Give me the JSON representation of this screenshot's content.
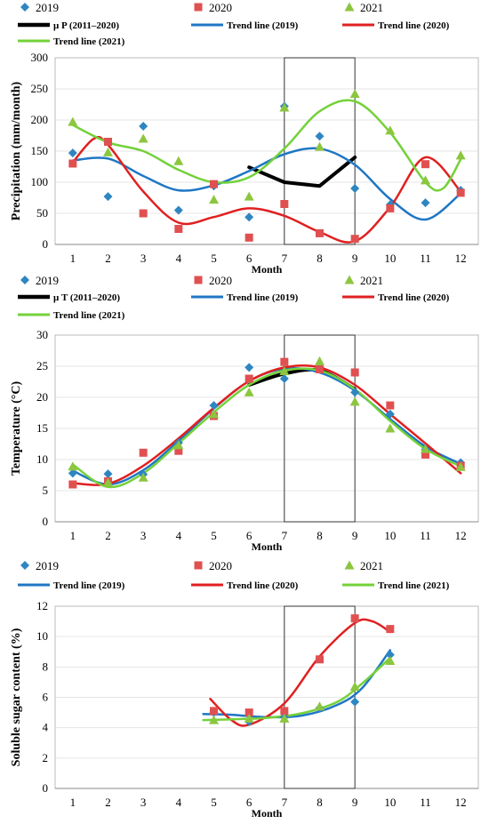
{
  "chart_data": [
    {
      "type": "scatter",
      "ylabel": "Precipitation (mm/month)",
      "xlabel": "Month",
      "xlim": [
        0.5,
        12.5
      ],
      "ylim": [
        0,
        300
      ],
      "yticks": [
        0,
        50,
        100,
        150,
        200,
        250,
        300
      ],
      "xticks": [
        "1",
        "2",
        "3",
        "4",
        "5",
        "6",
        "7",
        "8",
        "9",
        "10",
        "11",
        "12"
      ],
      "highlight_months": [
        7,
        9
      ],
      "legend": [
        {
          "label": "2019",
          "marker": "diamond",
          "color": "#2e86c1"
        },
        {
          "label": "2020",
          "marker": "square",
          "color": "#e05050"
        },
        {
          "label": "2021",
          "marker": "triangle",
          "color": "#8cc63f"
        },
        {
          "label": "μ P (2011–2020)",
          "line": "#000000",
          "width": 4
        },
        {
          "label": "Trend line (2019)",
          "line": "#1f77c4",
          "width": 2.5
        },
        {
          "label": "Trend line (2020)",
          "line": "#e02020",
          "width": 2.5
        },
        {
          "label": "Trend line (2021)",
          "line": "#74d13a",
          "width": 2.5
        }
      ],
      "series": [
        {
          "name": "2019",
          "kind": "points",
          "marker": "diamond",
          "color": "#2e86c1",
          "x": [
            1,
            2,
            3,
            4,
            5,
            6,
            7,
            8,
            9,
            10,
            11,
            12
          ],
          "y": [
            147,
            77,
            190,
            55,
            94,
            44,
            222,
            174,
            90,
            64,
            67,
            87
          ]
        },
        {
          "name": "2020",
          "kind": "points",
          "marker": "square",
          "color": "#e05050",
          "x": [
            1,
            2,
            3,
            4,
            5,
            6,
            7,
            8,
            9,
            10,
            11,
            12
          ],
          "y": [
            130,
            165,
            50,
            25,
            97,
            11,
            65,
            18,
            9,
            58,
            129,
            83
          ]
        },
        {
          "name": "2021",
          "kind": "points",
          "marker": "triangle",
          "color": "#8cc63f",
          "x": [
            1,
            2,
            3,
            4,
            5,
            6,
            7,
            8,
            9,
            10,
            11,
            12
          ],
          "y": [
            197,
            148,
            170,
            134,
            72,
            77,
            220,
            157,
            242,
            183,
            103,
            143
          ]
        },
        {
          "name": "μ P (2011–2020)",
          "kind": "line",
          "color": "#000000",
          "width": 4,
          "x": [
            6,
            7,
            8,
            9
          ],
          "y": [
            124,
            100,
            94,
            140
          ]
        },
        {
          "name": "Trend line (2019)",
          "kind": "smooth",
          "color": "#1f77c4",
          "width": 2.5,
          "x": [
            1,
            2,
            3,
            4,
            5,
            6,
            7,
            8,
            9,
            10,
            11,
            12
          ],
          "y": [
            135,
            138,
            110,
            87,
            95,
            118,
            145,
            154,
            128,
            73,
            40,
            82
          ]
        },
        {
          "name": "Trend line (2020)",
          "kind": "smooth",
          "color": "#e02020",
          "width": 2.5,
          "x": [
            1,
            1.6,
            2,
            3,
            4,
            5,
            6,
            7,
            8,
            9,
            10,
            11,
            12
          ],
          "y": [
            132,
            170,
            160,
            85,
            35,
            44,
            58,
            46,
            20,
            5,
            60,
            140,
            85
          ]
        },
        {
          "name": "Trend line (2021)",
          "kind": "smooth",
          "color": "#74d13a",
          "width": 2.5,
          "x": [
            1,
            2,
            3,
            4,
            5,
            6,
            7,
            8,
            9,
            10,
            11,
            11.5,
            12
          ],
          "y": [
            192,
            164,
            150,
            120,
            100,
            108,
            154,
            214,
            230,
            180,
            100,
            90,
            137
          ]
        }
      ]
    },
    {
      "type": "scatter",
      "ylabel": "Temperature (°C)",
      "xlabel": "Month",
      "xlim": [
        0.5,
        12.5
      ],
      "ylim": [
        0,
        30
      ],
      "yticks": [
        0,
        5,
        10,
        15,
        20,
        25,
        30
      ],
      "xticks": [
        "1",
        "2",
        "3",
        "4",
        "5",
        "6",
        "7",
        "8",
        "9",
        "10",
        "11",
        "12"
      ],
      "highlight_months": [
        7,
        9
      ],
      "legend": [
        {
          "label": "2019",
          "marker": "diamond",
          "color": "#2e86c1"
        },
        {
          "label": "2020",
          "marker": "square",
          "color": "#e05050"
        },
        {
          "label": "2021",
          "marker": "triangle",
          "color": "#8cc63f"
        },
        {
          "label": "μ T (2011–2020)",
          "line": "#000000",
          "width": 4
        },
        {
          "label": "Trend line (2019)",
          "line": "#1f77c4",
          "width": 2.5
        },
        {
          "label": "Trend line (2020)",
          "line": "#e02020",
          "width": 2.5
        },
        {
          "label": "Trend line (2021)",
          "line": "#74d13a",
          "width": 2.5
        }
      ],
      "series": [
        {
          "name": "2019",
          "kind": "points",
          "marker": "diamond",
          "color": "#2e86c1",
          "x": [
            1,
            2,
            3,
            4,
            5,
            6,
            7,
            8,
            9,
            10,
            11,
            12
          ],
          "y": [
            7.8,
            7.7,
            7.6,
            12.7,
            18.7,
            24.8,
            23.0,
            24.8,
            20.8,
            17.3,
            11.6,
            9.5
          ]
        },
        {
          "name": "2020",
          "kind": "points",
          "marker": "square",
          "color": "#e05050",
          "x": [
            1,
            2,
            3,
            4,
            5,
            6,
            7,
            8,
            9,
            10,
            11,
            12
          ],
          "y": [
            6.0,
            6.5,
            11.1,
            11.4,
            17.0,
            23.0,
            25.7,
            24.5,
            24.0,
            18.7,
            10.8,
            9.0
          ]
        },
        {
          "name": "2021",
          "kind": "points",
          "marker": "triangle",
          "color": "#8cc63f",
          "x": [
            1,
            2,
            3,
            4,
            5,
            6,
            7,
            8,
            9,
            10,
            11,
            12
          ],
          "y": [
            8.9,
            6.3,
            7.1,
            12.3,
            17.3,
            20.8,
            24.2,
            25.8,
            19.3,
            15.0,
            11.7,
            8.8
          ]
        },
        {
          "name": "μ T (2011–2020)",
          "kind": "smooth",
          "color": "#000000",
          "width": 4,
          "x": [
            6,
            7,
            8,
            9
          ],
          "y": [
            22.0,
            23.8,
            24.3,
            21.3
          ]
        },
        {
          "name": "Trend line (2019)",
          "kind": "smooth",
          "color": "#1f77c4",
          "width": 2.5,
          "x": [
            1,
            2,
            3,
            4,
            5,
            6,
            7,
            8,
            9,
            10,
            11,
            12
          ],
          "y": [
            8.2,
            6.0,
            8.3,
            13.0,
            18.2,
            22.6,
            24.6,
            24.0,
            21.1,
            16.5,
            12.1,
            9.3
          ]
        },
        {
          "name": "Trend line (2020)",
          "kind": "smooth",
          "color": "#e02020",
          "width": 2.5,
          "x": [
            1,
            2,
            3,
            4,
            5,
            6,
            7,
            8,
            9,
            10,
            11,
            12
          ],
          "y": [
            6.2,
            6.1,
            9.0,
            13.4,
            18.3,
            22.6,
            24.8,
            24.8,
            22.0,
            17.3,
            12.6,
            7.8
          ]
        },
        {
          "name": "Trend line (2021)",
          "kind": "smooth",
          "color": "#74d13a",
          "width": 2.5,
          "x": [
            1,
            2,
            3,
            4,
            5,
            6,
            7,
            8,
            9,
            10,
            11,
            12
          ],
          "y": [
            9.2,
            5.6,
            7.8,
            12.6,
            17.6,
            22.0,
            24.3,
            24.3,
            21.3,
            16.2,
            11.7,
            8.9
          ]
        }
      ]
    },
    {
      "type": "scatter",
      "ylabel": "Soluble sugar content (%)",
      "xlabel": "Month",
      "xlim": [
        0.5,
        12.5
      ],
      "ylim": [
        0,
        12
      ],
      "yticks": [
        0,
        2,
        4,
        6,
        8,
        10,
        12
      ],
      "xticks": [
        "1",
        "2",
        "3",
        "4",
        "5",
        "6",
        "7",
        "8",
        "9",
        "10",
        "11",
        "12"
      ],
      "highlight_months": [
        7,
        9
      ],
      "legend": [
        {
          "label": "2019",
          "marker": "diamond",
          "color": "#2e86c1"
        },
        {
          "label": "2020",
          "marker": "square",
          "color": "#e05050"
        },
        {
          "label": "2021",
          "marker": "triangle",
          "color": "#8cc63f"
        },
        {
          "label": "Trend line (2019)",
          "line": "#1f77c4",
          "width": 2.5
        },
        {
          "label": "Trend line (2020)",
          "line": "#e02020",
          "width": 2.5
        },
        {
          "label": "Trend line (2021)",
          "line": "#74d13a",
          "width": 2.5
        }
      ],
      "series": [
        {
          "name": "2019",
          "kind": "points",
          "marker": "diamond",
          "color": "#2e86c1",
          "x": [
            5,
            6,
            7,
            8,
            9,
            10
          ],
          "y": [
            5.0,
            4.4,
            4.7,
            5.3,
            5.7,
            8.8
          ]
        },
        {
          "name": "2020",
          "kind": "points",
          "marker": "square",
          "color": "#e05050",
          "x": [
            5,
            6,
            7,
            8,
            9,
            10
          ],
          "y": [
            5.1,
            5.0,
            5.1,
            8.5,
            11.2,
            10.5
          ]
        },
        {
          "name": "2021",
          "kind": "points",
          "marker": "triangle",
          "color": "#8cc63f",
          "x": [
            5,
            6,
            7,
            8,
            9,
            10
          ],
          "y": [
            4.5,
            4.6,
            4.6,
            5.4,
            6.7,
            8.4
          ]
        },
        {
          "name": "Trend line (2019)",
          "kind": "smooth",
          "color": "#1f77c4",
          "width": 2.5,
          "x": [
            4.7,
            5.5,
            6.5,
            7.5,
            8.5,
            9.2,
            10.0
          ],
          "y": [
            4.9,
            4.85,
            4.7,
            4.8,
            5.5,
            6.6,
            9.1
          ]
        },
        {
          "name": "Trend line (2020)",
          "kind": "smooth",
          "color": "#e02020",
          "width": 2.5,
          "x": [
            4.9,
            5.5,
            6.0,
            7.0,
            8.0,
            9.0,
            9.5,
            10.0
          ],
          "y": [
            5.9,
            4.5,
            4.2,
            5.6,
            8.7,
            10.9,
            11.0,
            10.3
          ]
        },
        {
          "name": "Trend line (2021)",
          "kind": "smooth",
          "color": "#74d13a",
          "width": 2.5,
          "x": [
            4.7,
            5.5,
            6.5,
            7.5,
            8.5,
            9.2,
            10.0
          ],
          "y": [
            4.5,
            4.55,
            4.65,
            4.95,
            5.7,
            6.9,
            8.6
          ]
        }
      ]
    }
  ]
}
